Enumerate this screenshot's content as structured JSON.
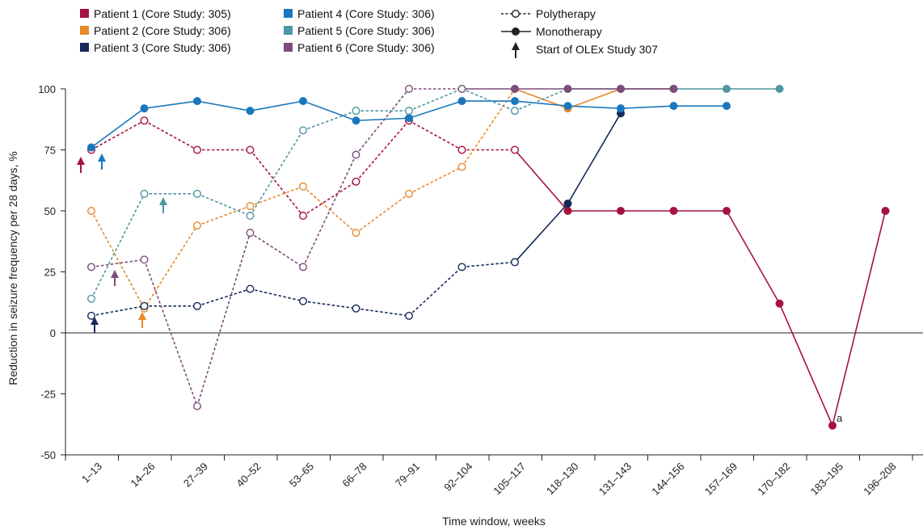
{
  "chart_data": {
    "type": "line",
    "xlabel": "Time window, weeks",
    "ylabel": "Reduction in seizure frequency per 28 days, %",
    "categories": [
      "1–13",
      "14–26",
      "27–39",
      "40–52",
      "53–65",
      "66–78",
      "79–91",
      "92–104",
      "105–117",
      "118–130",
      "131–143",
      "144–156",
      "157–169",
      "170–182",
      "183–195",
      "196–208"
    ],
    "y_ticks": [
      "100",
      "75",
      "50",
      "25",
      "0",
      "-25",
      "-50"
    ],
    "ylim": [
      -50,
      100
    ],
    "annotation": "a",
    "legend": {
      "patients": [
        {
          "name": "Patient 1 (Core Study: 305)",
          "color": "#a6123f"
        },
        {
          "name": "Patient 2 (Core Study: 306)",
          "color": "#e8892b"
        },
        {
          "name": "Patient 3 (Core Study: 306)",
          "color": "#16295a"
        },
        {
          "name": "Patient 4 (Core Study: 306)",
          "color": "#1978bd"
        },
        {
          "name": "Patient 5 (Core Study: 306)",
          "color": "#5095a4"
        },
        {
          "name": "Patient 6 (Core Study: 306)",
          "color": "#7e4d78"
        }
      ],
      "polytherapy": "Polytherapy",
      "monotherapy": "Monotherapy",
      "olex_start": "Start of OLEx Study 307"
    },
    "series": [
      {
        "name": "Patient 1 (Core Study: 305)",
        "color": "#a6123f",
        "olex_start_x": 0,
        "points": [
          {
            "x": 0,
            "y": 75,
            "therapy": "poly"
          },
          {
            "x": 1,
            "y": 87,
            "therapy": "poly"
          },
          {
            "x": 2,
            "y": 75,
            "therapy": "poly"
          },
          {
            "x": 3,
            "y": 75,
            "therapy": "poly"
          },
          {
            "x": 4,
            "y": 48,
            "therapy": "poly"
          },
          {
            "x": 5,
            "y": 62,
            "therapy": "poly"
          },
          {
            "x": 6,
            "y": 87,
            "therapy": "poly"
          },
          {
            "x": 7,
            "y": 75,
            "therapy": "poly"
          },
          {
            "x": 8,
            "y": 75,
            "therapy": "poly"
          },
          {
            "x": 9,
            "y": 50,
            "therapy": "mono"
          },
          {
            "x": 10,
            "y": 50,
            "therapy": "mono"
          },
          {
            "x": 11,
            "y": 50,
            "therapy": "mono"
          },
          {
            "x": 12,
            "y": 50,
            "therapy": "mono"
          },
          {
            "x": 13,
            "y": 12,
            "therapy": "mono"
          },
          {
            "x": 14,
            "y": -38,
            "therapy": "mono"
          },
          {
            "x": 15,
            "y": 50,
            "therapy": "mono"
          }
        ]
      },
      {
        "name": "Patient 2 (Core Study: 306)",
        "color": "#e8892b",
        "olex_start_x": 1,
        "points": [
          {
            "x": 0,
            "y": 50,
            "therapy": "poly"
          },
          {
            "x": 1,
            "y": 10,
            "therapy": "poly"
          },
          {
            "x": 2,
            "y": 44,
            "therapy": "poly"
          },
          {
            "x": 3,
            "y": 52,
            "therapy": "poly"
          },
          {
            "x": 4,
            "y": 60,
            "therapy": "poly"
          },
          {
            "x": 5,
            "y": 41,
            "therapy": "poly"
          },
          {
            "x": 6,
            "y": 57,
            "therapy": "poly"
          },
          {
            "x": 7,
            "y": 68,
            "therapy": "poly"
          },
          {
            "x": 8,
            "y": 100,
            "therapy": "poly"
          },
          {
            "x": 9,
            "y": 92,
            "therapy": "mono"
          },
          {
            "x": 10,
            "y": 100,
            "therapy": "mono"
          },
          {
            "x": 11,
            "y": 100,
            "therapy": "mono"
          }
        ]
      },
      {
        "name": "Patient 3 (Core Study: 306)",
        "color": "#16295a",
        "olex_start_x": 0,
        "points": [
          {
            "x": 0,
            "y": 7,
            "therapy": "poly"
          },
          {
            "x": 1,
            "y": 11,
            "therapy": "poly"
          },
          {
            "x": 2,
            "y": 11,
            "therapy": "poly"
          },
          {
            "x": 3,
            "y": 18,
            "therapy": "poly"
          },
          {
            "x": 4,
            "y": 13,
            "therapy": "poly"
          },
          {
            "x": 5,
            "y": 10,
            "therapy": "poly"
          },
          {
            "x": 6,
            "y": 7,
            "therapy": "poly"
          },
          {
            "x": 7,
            "y": 27,
            "therapy": "poly"
          },
          {
            "x": 8,
            "y": 29,
            "therapy": "poly"
          },
          {
            "x": 9,
            "y": 53,
            "therapy": "mono"
          },
          {
            "x": 10,
            "y": 90,
            "therapy": "mono"
          }
        ]
      },
      {
        "name": "Patient 4 (Core Study: 306)",
        "color": "#1978bd",
        "olex_start_x": 0,
        "points": [
          {
            "x": 0,
            "y": 76,
            "therapy": "mono"
          },
          {
            "x": 1,
            "y": 92,
            "therapy": "mono"
          },
          {
            "x": 2,
            "y": 95,
            "therapy": "mono"
          },
          {
            "x": 3,
            "y": 91,
            "therapy": "mono"
          },
          {
            "x": 4,
            "y": 95,
            "therapy": "mono"
          },
          {
            "x": 5,
            "y": 87,
            "therapy": "mono"
          },
          {
            "x": 6,
            "y": 88,
            "therapy": "mono"
          },
          {
            "x": 7,
            "y": 95,
            "therapy": "mono"
          },
          {
            "x": 8,
            "y": 95,
            "therapy": "mono"
          },
          {
            "x": 9,
            "y": 93,
            "therapy": "mono"
          },
          {
            "x": 10,
            "y": 92,
            "therapy": "mono"
          },
          {
            "x": 11,
            "y": 93,
            "therapy": "mono"
          },
          {
            "x": 12,
            "y": 93,
            "therapy": "mono"
          }
        ]
      },
      {
        "name": "Patient 5 (Core Study: 306)",
        "color": "#5095a4",
        "olex_start_x": 1,
        "points": [
          {
            "x": 0,
            "y": 14,
            "therapy": "poly"
          },
          {
            "x": 1,
            "y": 57,
            "therapy": "poly"
          },
          {
            "x": 2,
            "y": 57,
            "therapy": "poly"
          },
          {
            "x": 3,
            "y": 48,
            "therapy": "poly"
          },
          {
            "x": 4,
            "y": 83,
            "therapy": "poly"
          },
          {
            "x": 5,
            "y": 91,
            "therapy": "poly"
          },
          {
            "x": 6,
            "y": 91,
            "therapy": "poly"
          },
          {
            "x": 7,
            "y": 100,
            "therapy": "poly"
          },
          {
            "x": 8,
            "y": 91,
            "therapy": "poly"
          },
          {
            "x": 9,
            "y": 100,
            "therapy": "poly"
          },
          {
            "x": 10,
            "y": 100,
            "therapy": "mono"
          },
          {
            "x": 11,
            "y": 100,
            "therapy": "mono"
          },
          {
            "x": 12,
            "y": 100,
            "therapy": "mono"
          },
          {
            "x": 13,
            "y": 100,
            "therapy": "mono"
          }
        ]
      },
      {
        "name": "Patient 6 (Core Study: 306)",
        "color": "#7e4d78",
        "olex_start_x": 0,
        "points": [
          {
            "x": 0,
            "y": 27,
            "therapy": "poly"
          },
          {
            "x": 1,
            "y": 30,
            "therapy": "poly"
          },
          {
            "x": 2,
            "y": -30,
            "therapy": "poly"
          },
          {
            "x": 3,
            "y": 41,
            "therapy": "poly"
          },
          {
            "x": 4,
            "y": 27,
            "therapy": "poly"
          },
          {
            "x": 5,
            "y": 73,
            "therapy": "poly"
          },
          {
            "x": 6,
            "y": 100,
            "therapy": "poly"
          },
          {
            "x": 7,
            "y": 100,
            "therapy": "poly"
          },
          {
            "x": 8,
            "y": 100,
            "therapy": "mono"
          },
          {
            "x": 9,
            "y": 100,
            "therapy": "mono"
          },
          {
            "x": 10,
            "y": 100,
            "therapy": "mono"
          },
          {
            "x": 11,
            "y": 100,
            "therapy": "mono"
          }
        ]
      }
    ]
  }
}
